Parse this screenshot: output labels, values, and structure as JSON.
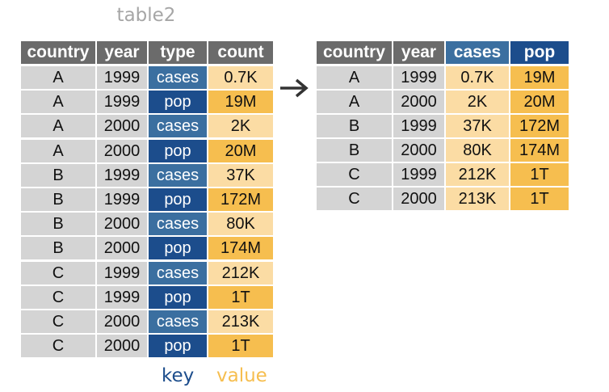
{
  "left_table": {
    "title": "table2",
    "headers": [
      "country",
      "year",
      "type",
      "count"
    ],
    "rows": [
      [
        "A",
        "1999",
        "cases",
        "0.7K"
      ],
      [
        "A",
        "1999",
        "pop",
        "19M"
      ],
      [
        "A",
        "2000",
        "cases",
        "2K"
      ],
      [
        "A",
        "2000",
        "pop",
        "20M"
      ],
      [
        "B",
        "1999",
        "cases",
        "37K"
      ],
      [
        "B",
        "1999",
        "pop",
        "172M"
      ],
      [
        "B",
        "2000",
        "cases",
        "80K"
      ],
      [
        "B",
        "2000",
        "pop",
        "174M"
      ],
      [
        "C",
        "1999",
        "cases",
        "212K"
      ],
      [
        "C",
        "1999",
        "pop",
        "1T"
      ],
      [
        "C",
        "2000",
        "cases",
        "213K"
      ],
      [
        "C",
        "2000",
        "pop",
        "1T"
      ]
    ]
  },
  "right_table": {
    "headers": [
      "country",
      "year",
      "cases",
      "pop"
    ],
    "rows": [
      [
        "A",
        "1999",
        "0.7K",
        "19M"
      ],
      [
        "A",
        "2000",
        "2K",
        "20M"
      ],
      [
        "B",
        "1999",
        "37K",
        "172M"
      ],
      [
        "B",
        "2000",
        "80K",
        "174M"
      ],
      [
        "C",
        "1999",
        "212K",
        "1T"
      ],
      [
        "C",
        "2000",
        "213K",
        "1T"
      ]
    ]
  },
  "legend": {
    "key_label": "key",
    "value_label": "value"
  },
  "colors": {
    "header_grey": "#6b6b6b",
    "cell_grey": "#d4d4d4",
    "key_cases_blue": "#3b6fa0",
    "key_pop_blue": "#1c4d8c",
    "value_cases_orange": "#fbdca4",
    "value_pop_orange": "#f6be4f",
    "title_grey": "#a6a6a6"
  },
  "arrow_icon": "right-arrow-icon"
}
